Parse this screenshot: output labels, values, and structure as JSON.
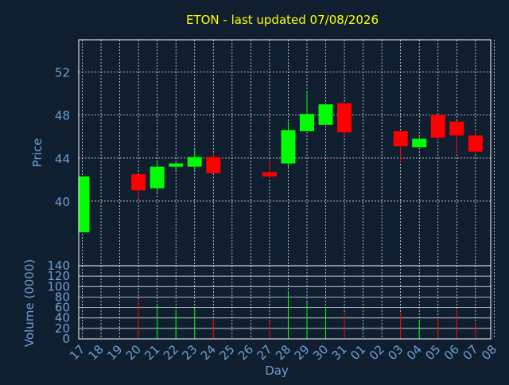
{
  "chart_data": {
    "type": "candlestick",
    "title": "ETON - last updated 07/08/2026",
    "xlabel": "Day",
    "price_panel": {
      "ylabel": "Price",
      "ylim": [
        34,
        55
      ],
      "ticks": [
        40,
        44,
        48,
        52
      ],
      "grid": true
    },
    "volume_panel": {
      "ylabel": "Volume (0000)",
      "ylim": [
        0,
        140
      ],
      "ticks": [
        0,
        20,
        40,
        60,
        80,
        100,
        120,
        140
      ],
      "grid": true
    },
    "x_ticks": [
      "17",
      "18",
      "19",
      "20",
      "21",
      "22",
      "23",
      "24",
      "25",
      "26",
      "27",
      "28",
      "29",
      "30",
      "31",
      "01",
      "02",
      "03",
      "04",
      "05",
      "06",
      "07",
      "08"
    ],
    "candles": [
      {
        "day": "17",
        "open": 37.1,
        "high": 42.3,
        "low": 37.1,
        "close": 42.3,
        "volume": 0
      },
      {
        "day": "20",
        "open": 42.5,
        "high": 42.5,
        "low": 40.2,
        "close": 41.0,
        "volume": 75
      },
      {
        "day": "21",
        "open": 41.2,
        "high": 43.8,
        "low": 40.8,
        "close": 43.2,
        "volume": 65
      },
      {
        "day": "22",
        "open": 43.2,
        "high": 43.6,
        "low": 42.8,
        "close": 43.5,
        "volume": 55
      },
      {
        "day": "23",
        "open": 43.2,
        "high": 44.8,
        "low": 42.9,
        "close": 44.1,
        "volume": 58
      },
      {
        "day": "24",
        "open": 44.1,
        "high": 44.4,
        "low": 42.6,
        "close": 42.6,
        "volume": 38
      },
      {
        "day": "27",
        "open": 42.7,
        "high": 43.9,
        "low": 42.1,
        "close": 42.3,
        "volume": 35
      },
      {
        "day": "28",
        "open": 43.5,
        "high": 47.4,
        "low": 43.0,
        "close": 46.6,
        "volume": 90
      },
      {
        "day": "29",
        "open": 46.5,
        "high": 50.2,
        "low": 46.5,
        "close": 48.1,
        "volume": 70
      },
      {
        "day": "30",
        "open": 47.1,
        "high": 49.0,
        "low": 47.1,
        "close": 49.0,
        "volume": 60
      },
      {
        "day": "31",
        "open": 49.1,
        "high": 49.1,
        "low": 46.0,
        "close": 46.4,
        "volume": 50
      },
      {
        "day": "03",
        "open": 46.5,
        "high": 46.5,
        "low": 43.5,
        "close": 45.1,
        "volume": 50
      },
      {
        "day": "04",
        "open": 45.0,
        "high": 45.9,
        "low": 45.0,
        "close": 45.8,
        "volume": 35
      },
      {
        "day": "05",
        "open": 48.0,
        "high": 48.0,
        "low": 45.6,
        "close": 45.9,
        "volume": 40
      },
      {
        "day": "06",
        "open": 47.4,
        "high": 47.4,
        "low": 44.3,
        "close": 46.1,
        "volume": 55
      },
      {
        "day": "07",
        "open": 46.1,
        "high": 46.5,
        "low": 44.5,
        "close": 44.6,
        "volume": 30
      }
    ],
    "colors": {
      "background": "#0f1f30",
      "up": "#00ff00",
      "down": "#ff0000",
      "title": "#ffff00",
      "axis_text": "#6f9fd0",
      "frame": "#ffffff",
      "grid": "#ffffff"
    }
  }
}
